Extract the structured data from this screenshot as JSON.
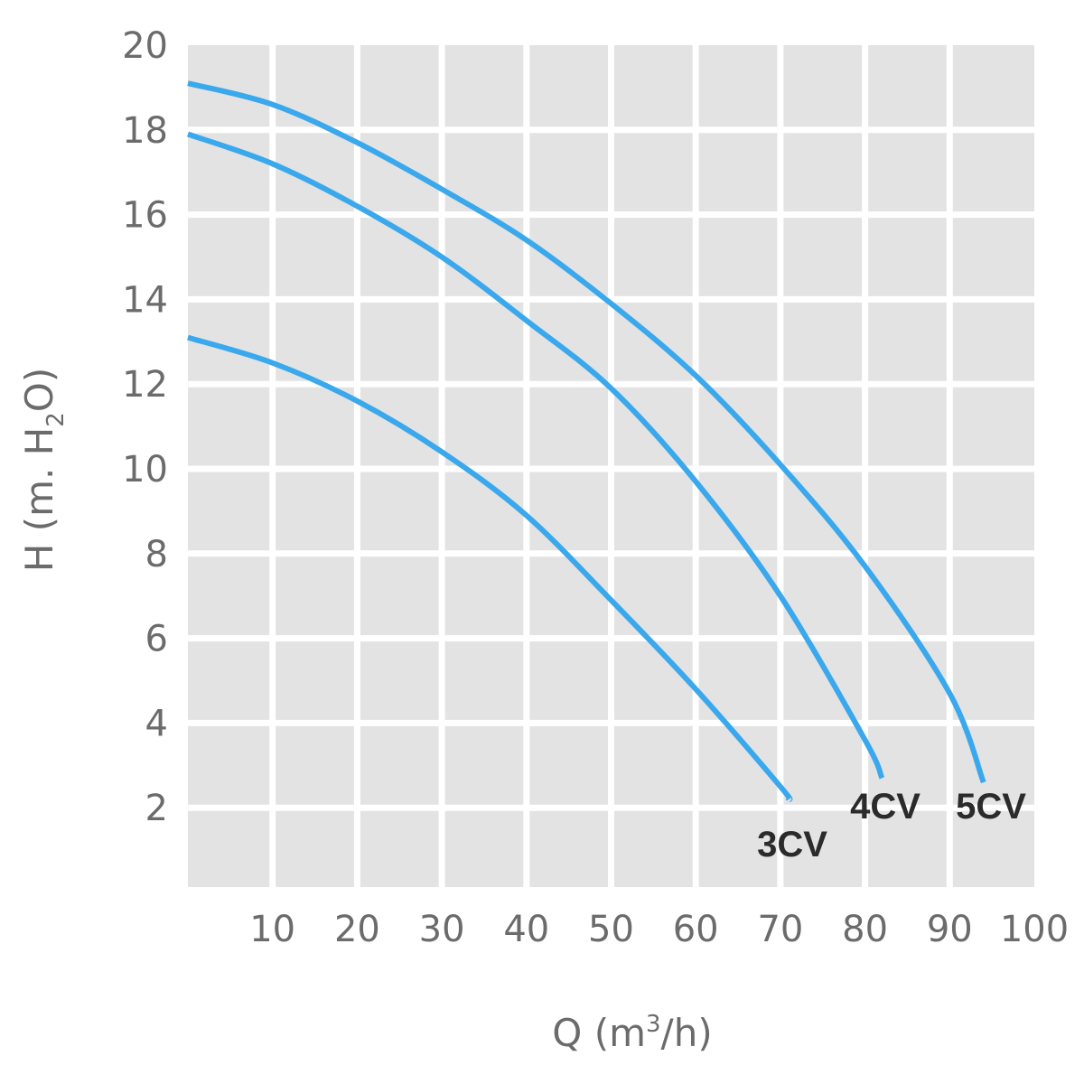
{
  "chart_data": {
    "type": "line",
    "title": "",
    "xlabel": "Q (m³/h)",
    "xlabel_parts": {
      "main": "Q (m",
      "sup": "3",
      "end": "/h)"
    },
    "ylabel": "H (m. H₂O)",
    "ylabel_parts": {
      "main": "H (m. H",
      "sub": "2",
      "end": "O)"
    },
    "xlim": [
      0,
      100
    ],
    "ylim": [
      0,
      20
    ],
    "xticks": [
      10,
      20,
      30,
      40,
      50,
      60,
      70,
      80,
      90,
      100
    ],
    "yticks": [
      2,
      4,
      6,
      8,
      10,
      12,
      14,
      16,
      18,
      20
    ],
    "grid": true,
    "colors": {
      "line": "#3aa8ec",
      "plot_bg": "#e3e3e3",
      "grid": "#ffffff",
      "tick": "#6b6b6b",
      "label": "#2b2b2b"
    },
    "series": [
      {
        "name": "5CV",
        "x": [
          0,
          10,
          20,
          30,
          40,
          50,
          60,
          70,
          80,
          90,
          94
        ],
        "y": [
          19.1,
          18.6,
          17.7,
          16.6,
          15.4,
          13.9,
          12.2,
          10.1,
          7.7,
          4.7,
          2.6
        ]
      },
      {
        "name": "4CV",
        "x": [
          0,
          10,
          20,
          30,
          40,
          50,
          60,
          70,
          80,
          82
        ],
        "y": [
          17.9,
          17.2,
          16.2,
          15.0,
          13.5,
          11.9,
          9.7,
          7.0,
          3.6,
          2.7
        ]
      },
      {
        "name": "3CV",
        "x": [
          0,
          10,
          20,
          30,
          40,
          50,
          60,
          70,
          71
        ],
        "y": [
          13.1,
          12.5,
          11.6,
          10.4,
          8.9,
          6.9,
          4.8,
          2.5,
          2.2
        ]
      }
    ]
  }
}
